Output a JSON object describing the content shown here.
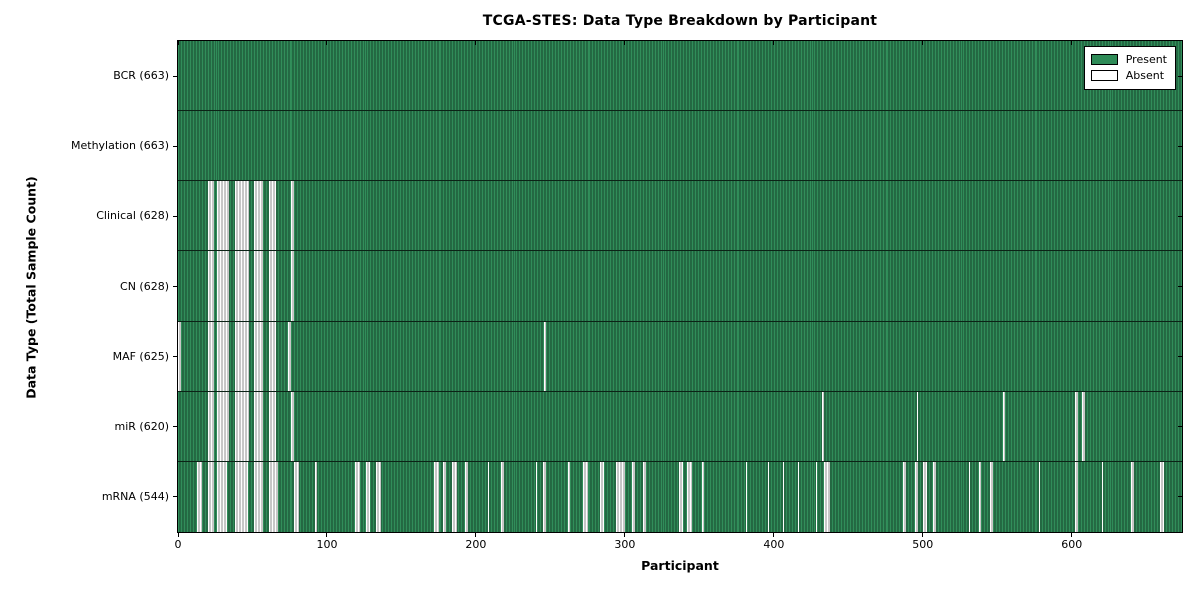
{
  "chart_data": {
    "type": "heatmap",
    "title": "TCGA-STES: Data Type Breakdown by Participant",
    "xlabel": "Participant",
    "ylabel": "Data Type (Total Sample Count)",
    "x_ticks": [
      0,
      100,
      200,
      300,
      400,
      500,
      600
    ],
    "xlim": [
      0,
      674
    ],
    "n_participants": 663,
    "grid": false,
    "legend_position": "upper right",
    "legend": [
      {
        "label": "Present",
        "color": "#2e8b57"
      },
      {
        "label": "Absent",
        "color": "#ffffff"
      }
    ],
    "colors": {
      "present": "#2e8b57",
      "absent": "#ffffff",
      "bar_edge": "#000000",
      "axis": "#000000"
    },
    "rows": [
      {
        "label": "BCR (663)",
        "data_type": "BCR",
        "present_count": 663,
        "absent_ranges": []
      },
      {
        "label": "Methylation (663)",
        "data_type": "Methylation",
        "present_count": 663,
        "absent_ranges": []
      },
      {
        "label": "Clinical (628)",
        "data_type": "Clinical",
        "present_count": 628,
        "absent_ranges": [
          [
            20,
            23
          ],
          [
            26,
            33
          ],
          [
            38,
            47
          ],
          [
            51,
            56
          ],
          [
            61,
            65
          ],
          [
            76,
            77
          ]
        ]
      },
      {
        "label": "CN (628)",
        "data_type": "CN",
        "present_count": 628,
        "absent_ranges": [
          [
            20,
            23
          ],
          [
            26,
            33
          ],
          [
            38,
            47
          ],
          [
            51,
            56
          ],
          [
            61,
            65
          ],
          [
            76,
            77
          ]
        ]
      },
      {
        "label": "MAF (625)",
        "data_type": "MAF",
        "present_count": 625,
        "absent_ranges": [
          [
            0,
            1
          ],
          [
            20,
            23
          ],
          [
            26,
            33
          ],
          [
            38,
            47
          ],
          [
            51,
            56
          ],
          [
            61,
            65
          ],
          [
            74,
            75
          ],
          [
            246,
            246
          ]
        ]
      },
      {
        "label": "miR (620)",
        "data_type": "miR",
        "present_count": 620,
        "absent_ranges": [
          [
            20,
            23
          ],
          [
            26,
            33
          ],
          [
            38,
            47
          ],
          [
            51,
            56
          ],
          [
            61,
            65
          ],
          [
            76,
            77
          ],
          [
            432,
            433
          ],
          [
            496,
            496
          ],
          [
            554,
            554
          ],
          [
            602,
            603
          ],
          [
            607,
            608
          ]
        ]
      },
      {
        "label": "mRNA (544)",
        "data_type": "mRNA",
        "present_count": 544,
        "absent_ranges": [
          [
            13,
            15
          ],
          [
            20,
            23
          ],
          [
            26,
            32
          ],
          [
            38,
            46
          ],
          [
            51,
            56
          ],
          [
            61,
            66
          ],
          [
            78,
            80
          ],
          [
            92,
            92
          ],
          [
            119,
            121
          ],
          [
            126,
            128
          ],
          [
            133,
            135
          ],
          [
            172,
            174
          ],
          [
            178,
            179
          ],
          [
            184,
            186
          ],
          [
            193,
            194
          ],
          [
            208,
            208
          ],
          [
            217,
            218
          ],
          [
            240,
            240
          ],
          [
            245,
            246
          ],
          [
            262,
            262
          ],
          [
            272,
            274
          ],
          [
            283,
            285
          ],
          [
            294,
            299
          ],
          [
            305,
            306
          ],
          [
            312,
            313
          ],
          [
            336,
            338
          ],
          [
            342,
            344
          ],
          [
            352,
            352
          ],
          [
            381,
            381
          ],
          [
            396,
            396
          ],
          [
            406,
            406
          ],
          [
            416,
            416
          ],
          [
            428,
            428
          ],
          [
            434,
            437
          ],
          [
            487,
            488
          ],
          [
            495,
            496
          ],
          [
            500,
            502
          ],
          [
            507,
            508
          ],
          [
            531,
            531
          ],
          [
            538,
            538
          ],
          [
            545,
            546
          ],
          [
            578,
            578
          ],
          [
            602,
            603
          ],
          [
            620,
            620
          ],
          [
            640,
            641
          ],
          [
            659,
            661
          ]
        ]
      }
    ]
  }
}
